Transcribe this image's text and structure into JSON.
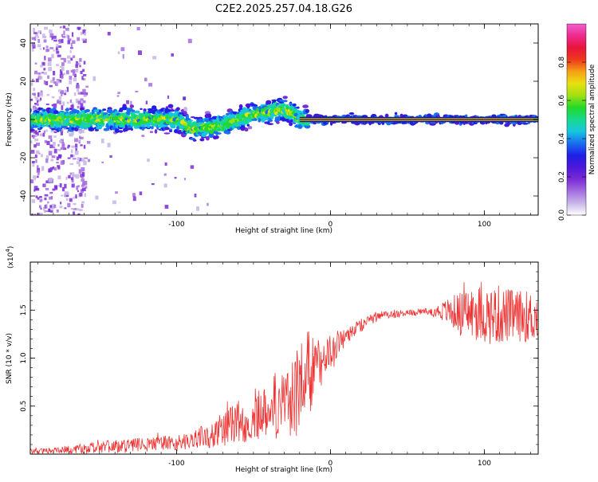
{
  "figure_title": "C2E2.2025.257.04.18.G26",
  "chart_data": [
    {
      "type": "heatmap",
      "title": "C2E2.2025.257.04.18.G26",
      "xlabel": "Height of straight line (km)",
      "ylabel": "Frequency (Hz)",
      "xlim": [
        -195,
        135
      ],
      "ylim": [
        -50,
        50
      ],
      "x_ticks": [
        -100,
        0,
        100
      ],
      "y_ticks": [
        -40,
        -20,
        0,
        20,
        40
      ],
      "x_tick_labels": [
        "-100",
        "0",
        "100"
      ],
      "y_tick_labels": [
        "-40",
        "-20",
        "0",
        "20",
        "40"
      ],
      "grid": false,
      "colorbar": {
        "label": "Normalized spectral amplitude",
        "range": [
          0,
          1
        ],
        "ticks": [
          0.0,
          0.2,
          0.4,
          0.6,
          0.8
        ],
        "tick_labels": [
          "0.0",
          "0.2",
          "0.4",
          "0.6",
          "0.8"
        ],
        "colormap": [
          "#ffffff",
          "#c7b5e8",
          "#a46de0",
          "#7a2bd6",
          "#4b18d8",
          "#1f1fe6",
          "#1a6ef0",
          "#17c6e0",
          "#18d98c",
          "#22d829",
          "#9fe012",
          "#e8e011",
          "#f5a114",
          "#ee3a1c",
          "#e8153c",
          "#ee2a8e",
          "#f060d0"
        ]
      },
      "ridge": {
        "x": [
          -195,
          -180,
          -160,
          -140,
          -120,
          -100,
          -95,
          -90,
          -80,
          -70,
          -60,
          -50,
          -40,
          -30,
          -25,
          -20,
          -10,
          0,
          10,
          20,
          40,
          60,
          80,
          100,
          120,
          135
        ],
        "y": [
          0,
          0,
          0,
          0,
          0,
          0,
          -2,
          -5,
          -4,
          -3,
          0,
          3,
          4,
          5,
          4,
          0,
          0,
          0,
          0,
          0,
          0,
          0,
          0,
          0,
          0,
          0
        ]
      },
      "noise_region_x": [
        -195,
        -160
      ],
      "central_line_x": [
        -20,
        135
      ]
    },
    {
      "type": "line",
      "title": "",
      "xlabel": "Height of straight line (km)",
      "ylabel": "SNR (10 * v/v)",
      "y_scale_label": "(x10",
      "y_scale_exponent": "4",
      "y_scale_suffix": ")",
      "xlim": [
        -195,
        135
      ],
      "ylim": [
        0,
        20000
      ],
      "x_ticks": [
        -100,
        0,
        100
      ],
      "y_ticks": [
        5000,
        10000,
        15000
      ],
      "x_tick_labels": [
        "-100",
        "0",
        "100"
      ],
      "y_tick_labels": [
        "0.5",
        "1.0",
        "1.5"
      ],
      "grid": false,
      "series": [
        {
          "color": "#ee3333",
          "envelope_x": [
            -195,
            -180,
            -160,
            -140,
            -120,
            -100,
            -90,
            -80,
            -70,
            -60,
            -50,
            -40,
            -30,
            -25,
            -20,
            -15,
            -10,
            -5,
            0,
            5,
            10,
            20,
            30,
            40,
            50,
            60,
            70,
            80,
            90,
            100,
            110,
            120,
            135
          ],
          "envelope_mean": [
            300,
            400,
            600,
            800,
            1000,
            1200,
            1500,
            2000,
            2600,
            3300,
            4000,
            4800,
            5600,
            6200,
            7000,
            8000,
            9000,
            10000,
            10800,
            11600,
            12300,
            13500,
            14300,
            14600,
            14700,
            14800,
            14900,
            14800,
            14700,
            14600,
            14500,
            14400,
            14300
          ],
          "envelope_spread": [
            300,
            300,
            600,
            800,
            800,
            1000,
            1000,
            1500,
            2000,
            2500,
            3000,
            3500,
            4500,
            5500,
            6000,
            5500,
            3500,
            2500,
            2000,
            1500,
            1200,
            800,
            600,
            500,
            400,
            400,
            800,
            2000,
            3000,
            3500,
            3500,
            3000,
            3000
          ]
        }
      ]
    }
  ]
}
